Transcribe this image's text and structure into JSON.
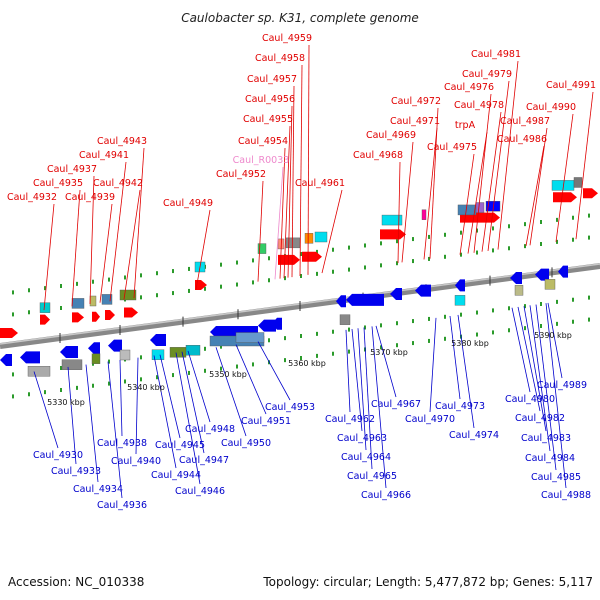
{
  "title": "Caulobacter sp. K31, complete genome",
  "footer": {
    "accession": "Accession: NC_010338",
    "summary": "Topology: circular; Length: 5,477,872 bp; Genes: 5,117"
  },
  "colors": {
    "top_label": "#e00000",
    "bottom_label": "#0000cc",
    "rna_label": "#ee88cc"
  },
  "scale_labels": [
    "5330 kbp",
    "5340 kbp",
    "5350 kbp",
    "5360 kbp",
    "5370 kbp",
    "5380 kbp",
    "5390 kbp"
  ],
  "top_labels": [
    "Caul_4932",
    "Caul_4935",
    "Caul_4937",
    "Caul_4939",
    "Caul_4941",
    "Caul_4942",
    "Caul_4943",
    "Caul_4949",
    "Caul_4952",
    "Caul_R0033",
    "Caul_4954",
    "Caul_4955",
    "Caul_4956",
    "Caul_4957",
    "Caul_4958",
    "Caul_4959",
    "Caul_4961",
    "Caul_4968",
    "Caul_4969",
    "Caul_4971",
    "Caul_4972",
    "Caul_4975",
    "trpA",
    "Caul_4976",
    "Caul_4978",
    "Caul_4979",
    "Caul_4981",
    "Caul_4986",
    "Caul_4987",
    "Caul_4990",
    "Caul_4991"
  ],
  "bottom_labels": [
    "Caul_4930",
    "Caul_4933",
    "Caul_4934",
    "Caul_4936",
    "Caul_4938",
    "Caul_4940",
    "Caul_4944",
    "Caul_4945",
    "Caul_4946",
    "Caul_4947",
    "Caul_4948",
    "Caul_4950",
    "Caul_4951",
    "Caul_4953",
    "Caul_4962",
    "Caul_4963",
    "Caul_4964",
    "Caul_4965",
    "Caul_4966",
    "Caul_4967",
    "Caul_4970",
    "Caul_4973",
    "Caul_4974",
    "Caul_4980",
    "Caul_4982",
    "Caul_4983",
    "Caul_4984",
    "Caul_4985",
    "Caul_4988",
    "Caul_4989"
  ]
}
